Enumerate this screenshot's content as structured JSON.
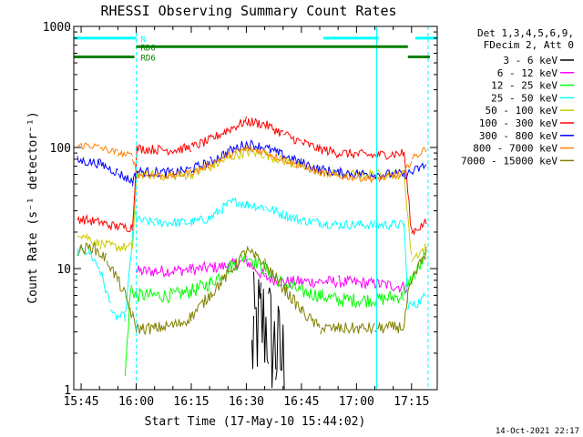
{
  "chart_data": {
    "type": "line",
    "title": "RHESSI Observing Summary Count Rates",
    "xlabel": "Start Time (17-May-10 15:44:02)",
    "ylabel": "Count Rate (s⁻¹ detector⁻¹)",
    "yscale": "log",
    "ylim": [
      1,
      1000
    ],
    "xlim_minutes": [
      -2,
      97
    ],
    "x_ticks": [
      {
        "label": "15:45",
        "min": 0
      },
      {
        "label": "16:00",
        "min": 15
      },
      {
        "label": "16:15",
        "min": 30
      },
      {
        "label": "16:30",
        "min": 45
      },
      {
        "label": "16:45",
        "min": 60
      },
      {
        "label": "17:00",
        "min": 75
      },
      {
        "label": "17:15",
        "min": 90
      }
    ],
    "y_ticks": [
      {
        "label": "1",
        "v": 1
      },
      {
        "label": "10",
        "v": 10
      },
      {
        "label": "100",
        "v": 100
      },
      {
        "label": "1000",
        "v": 1000
      }
    ],
    "legend_header": [
      "Det 1,3,4,5,6,9,",
      "FDecim 2, Att 0"
    ],
    "legend_position": "right",
    "footer_date": "14-Oct-2021 22:17",
    "state_bars": [
      {
        "label": "N",
        "color": "#00ffff",
        "y": 800,
        "segments": [
          [
            -2,
            15
          ],
          [
            66,
            81
          ],
          [
            91,
            97
          ]
        ]
      },
      {
        "label": "RD0",
        "color": "#008000",
        "y": 680,
        "segments": [
          [
            15,
            89
          ]
        ]
      },
      {
        "label": "RD6",
        "color": "#008000",
        "y": 560,
        "segments": [
          [
            -2,
            14.5
          ],
          [
            89,
            95
          ]
        ]
      }
    ],
    "vlines": [
      {
        "x": 15,
        "color": "#00ffff",
        "dashed": true
      },
      {
        "x": 80.5,
        "color": "#00ffff",
        "dashed": false
      },
      {
        "x": 94.5,
        "color": "#00ffff",
        "dashed": true
      }
    ],
    "series": [
      {
        "name": "3 - 6 keV",
        "color": "#000000",
        "noise": 0.5,
        "x": [
          -1,
          46,
          46.5,
          47,
          49,
          51,
          53,
          56,
          57
        ],
        "y": [
          null,
          null,
          1.8,
          3,
          3.6,
          3.2,
          2,
          1.5,
          null
        ]
      },
      {
        "name": "6 - 12 keV",
        "color": "#ff00ff",
        "noise": 0.05,
        "x": [
          15,
          20,
          30,
          40,
          45,
          50,
          55,
          60,
          70,
          80,
          89
        ],
        "y": [
          9.5,
          9.5,
          9.8,
          10.5,
          11.5,
          8.5,
          7.8,
          7.8,
          7.8,
          7.5,
          7
        ]
      },
      {
        "name": "12 - 25 keV",
        "color": "#00ff00",
        "noise": 0.06,
        "x": [
          12,
          13.5,
          15,
          25,
          30,
          35,
          40,
          45,
          50,
          55,
          60,
          65,
          70,
          80,
          88,
          89,
          91,
          94
        ],
        "y": [
          1.3,
          7,
          6,
          6,
          6.5,
          7.5,
          10,
          13,
          10,
          7.5,
          6.5,
          6,
          5.5,
          5.5,
          6,
          7.5,
          9,
          13
        ]
      },
      {
        "name": "25 - 50 keV",
        "color": "#00ffff",
        "noise": 0.04,
        "x": [
          -1,
          2,
          5,
          8,
          9,
          12,
          13.5,
          14.5,
          15.2,
          20,
          30,
          35,
          40,
          42,
          45,
          50,
          55,
          60,
          65,
          70,
          80,
          88,
          89,
          91,
          94
        ],
        "y": [
          14,
          14,
          10,
          5,
          4,
          4,
          12,
          30,
          25,
          24,
          24,
          26,
          34,
          36,
          34,
          32,
          28,
          25,
          24,
          23,
          23,
          23,
          5,
          5,
          6
        ]
      },
      {
        "name": "50 - 100 keV",
        "color": "#cccc00",
        "noise": 0.04,
        "x": [
          -1,
          5,
          10,
          14,
          15.2,
          25,
          30,
          35,
          40,
          45,
          50,
          55,
          60,
          65,
          70,
          80,
          88,
          90,
          94
        ],
        "y": [
          20,
          16,
          15,
          15,
          60,
          58,
          60,
          68,
          82,
          92,
          88,
          78,
          70,
          63,
          60,
          60,
          60,
          12,
          15
        ]
      },
      {
        "name": "100 - 300 keV",
        "color": "#ff0000",
        "noise": 0.04,
        "x": [
          -1,
          5,
          10,
          14,
          15.2,
          25,
          30,
          35,
          40,
          45,
          50,
          55,
          60,
          65,
          70,
          80,
          88,
          90,
          94
        ],
        "y": [
          26,
          24,
          22,
          22,
          98,
          95,
          100,
          115,
          140,
          165,
          155,
          130,
          110,
          97,
          90,
          86,
          90,
          20,
          24
        ]
      },
      {
        "name": "300 - 800 keV",
        "color": "#0000ff",
        "noise": 0.04,
        "x": [
          -1,
          5,
          10,
          14,
          15.2,
          25,
          30,
          35,
          40,
          45,
          50,
          55,
          60,
          65,
          70,
          80,
          88,
          90,
          94
        ],
        "y": [
          78,
          74,
          62,
          52,
          63,
          62,
          66,
          76,
          92,
          108,
          100,
          86,
          75,
          66,
          62,
          60,
          60,
          62,
          72
        ]
      },
      {
        "name": "800 - 7000 keV",
        "color": "#ff8000",
        "noise": 0.03,
        "x": [
          -1,
          2,
          5,
          10,
          14,
          15.2,
          25,
          30,
          35,
          40,
          45,
          50,
          55,
          60,
          65,
          70,
          80,
          88,
          90,
          94
        ],
        "y": [
          102,
          105,
          100,
          90,
          85,
          60,
          58,
          62,
          72,
          86,
          98,
          92,
          80,
          70,
          62,
          58,
          55,
          60,
          80,
          98
        ]
      },
      {
        "name": "7000 - 15000 keV",
        "color": "#808000",
        "noise": 0.05,
        "x": [
          -1,
          3,
          7,
          10,
          12,
          14,
          15,
          20,
          27,
          30,
          35,
          40,
          45,
          50,
          55,
          60,
          65,
          80,
          88,
          89,
          91,
          94
        ],
        "y": [
          14,
          15,
          12,
          8,
          6,
          4,
          3.2,
          3.2,
          3.5,
          4,
          6,
          9,
          14,
          11,
          7,
          4.5,
          3.2,
          3.2,
          3.3,
          6,
          9,
          14
        ]
      }
    ]
  }
}
